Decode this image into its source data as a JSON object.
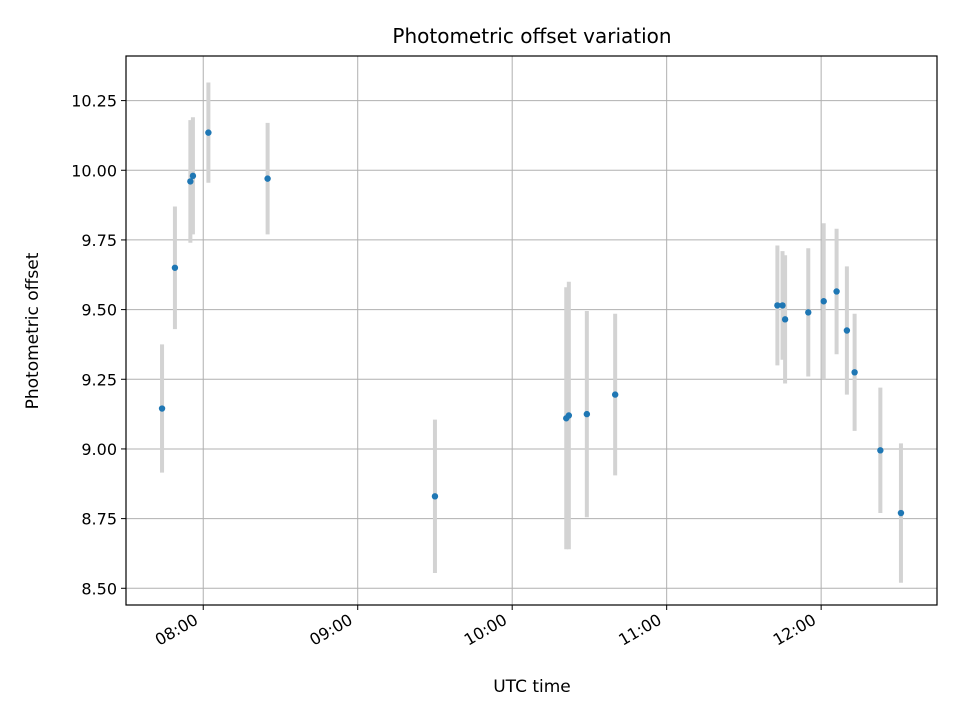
{
  "chart_data": {
    "type": "scatter",
    "title": "Photometric offset variation",
    "xlabel": "UTC time",
    "ylabel": "Photometric offset",
    "grid": true,
    "xlim": [
      "07:30",
      "12:45"
    ],
    "ylim": [
      8.44,
      10.41
    ],
    "x_ticks": [
      "08:00",
      "09:00",
      "10:00",
      "11:00",
      "12:00"
    ],
    "y_ticks": [
      8.5,
      8.75,
      9.0,
      9.25,
      9.5,
      9.75,
      10.0,
      10.25
    ],
    "colors": {
      "point": "#1f77b4",
      "errorbar": "#d3d3d3",
      "grid": "#b0b0b0"
    },
    "points": [
      {
        "x": "07:44",
        "y": 9.145,
        "err": 0.23
      },
      {
        "x": "07:49",
        "y": 9.65,
        "err": 0.22
      },
      {
        "x": "07:55",
        "y": 9.96,
        "err": 0.22
      },
      {
        "x": "07:56",
        "y": 9.98,
        "err": 0.21
      },
      {
        "x": "08:02",
        "y": 10.135,
        "err": 0.18
      },
      {
        "x": "08:25",
        "y": 9.97,
        "err": 0.2
      },
      {
        "x": "09:30",
        "y": 8.83,
        "err": 0.275
      },
      {
        "x": "10:21",
        "y": 9.11,
        "err": 0.47
      },
      {
        "x": "10:22",
        "y": 9.12,
        "err": 0.48
      },
      {
        "x": "10:29",
        "y": 9.125,
        "err": 0.37
      },
      {
        "x": "10:40",
        "y": 9.195,
        "err": 0.29
      },
      {
        "x": "11:43",
        "y": 9.515,
        "err": 0.215
      },
      {
        "x": "11:45",
        "y": 9.515,
        "err": 0.195
      },
      {
        "x": "11:46",
        "y": 9.465,
        "err": 0.23
      },
      {
        "x": "11:55",
        "y": 9.49,
        "err": 0.23
      },
      {
        "x": "12:01",
        "y": 9.53,
        "err": 0.28
      },
      {
        "x": "12:06",
        "y": 9.565,
        "err": 0.225
      },
      {
        "x": "12:10",
        "y": 9.425,
        "err": 0.23
      },
      {
        "x": "12:13",
        "y": 9.275,
        "err": 0.21
      },
      {
        "x": "12:23",
        "y": 8.995,
        "err": 0.225
      },
      {
        "x": "12:31",
        "y": 8.77,
        "err": 0.25
      }
    ]
  }
}
